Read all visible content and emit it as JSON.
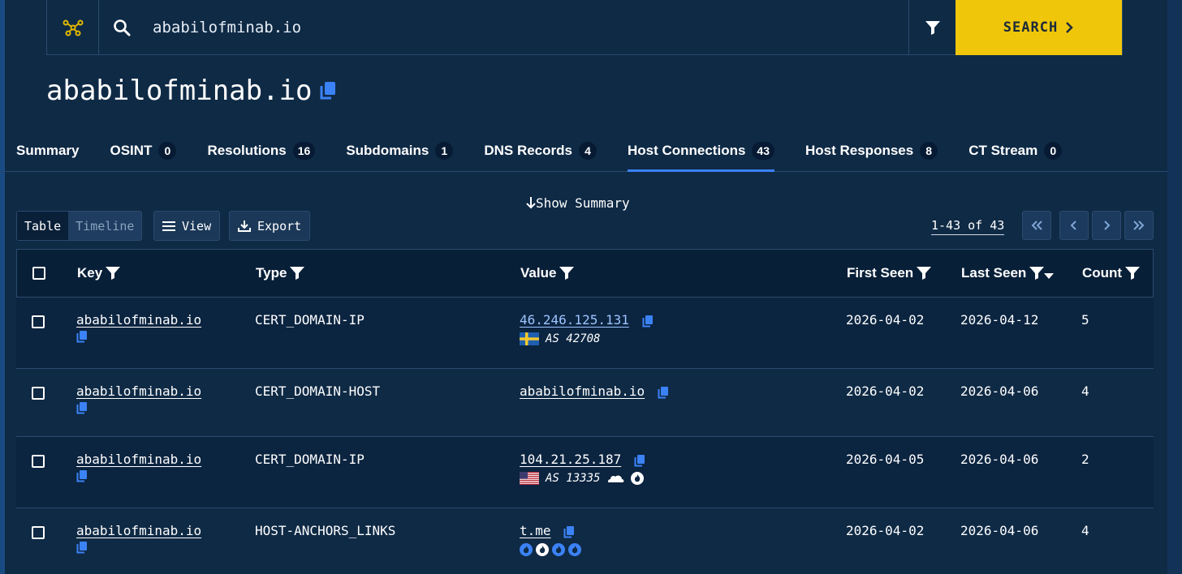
{
  "search": {
    "query": "ababilofminab.io",
    "button_label": "SEARCH"
  },
  "page": {
    "title": "ababilofminab.io"
  },
  "tabs": [
    {
      "label": "Summary",
      "count": ""
    },
    {
      "label": "OSINT",
      "count": "0"
    },
    {
      "label": "Resolutions",
      "count": "16"
    },
    {
      "label": "Subdomains",
      "count": "1"
    },
    {
      "label": "DNS Records",
      "count": "4"
    },
    {
      "label": "Host Connections",
      "count": "43",
      "active": true
    },
    {
      "label": "Host Responses",
      "count": "8"
    },
    {
      "label": "CT Stream",
      "count": "0"
    }
  ],
  "toolbar": {
    "show_summary": "Show Summary",
    "view_table": "Table",
    "view_timeline": "Timeline",
    "view_label": "View",
    "export_label": "Export",
    "pager_text": "1-43 of 43"
  },
  "table": {
    "columns": [
      "Key",
      "Type",
      "Value",
      "First Seen",
      "Last Seen",
      "Count"
    ],
    "rows": [
      {
        "key": "ababilofminab.io",
        "type": "CERT_DOMAIN-IP",
        "value": "46.246.125.131",
        "value_style": "ip",
        "asn": "AS 42708",
        "country": "SE",
        "first_seen": "2026-04-02",
        "last_seen": "2026-04-12",
        "count": "5"
      },
      {
        "key": "ababilofminab.io",
        "type": "CERT_DOMAIN-HOST",
        "value": "ababilofminab.io",
        "value_style": "host",
        "asn": "",
        "first_seen": "2026-04-02",
        "last_seen": "2026-04-06",
        "count": "4"
      },
      {
        "key": "ababilofminab.io",
        "type": "CERT_DOMAIN-IP",
        "value": "104.21.25.187",
        "value_style": "host",
        "asn": "AS 13335",
        "country": "US",
        "first_seen": "2026-04-05",
        "last_seen": "2026-04-06",
        "count": "2"
      },
      {
        "key": "ababilofminab.io",
        "type": "HOST-ANCHORS_LINKS",
        "value": "t.me",
        "value_style": "host",
        "asn": "",
        "first_seen": "2026-04-02",
        "last_seen": "2026-04-06",
        "count": "4"
      }
    ]
  },
  "colors": {
    "background": "#0f2a45",
    "accent_yellow": "#f0c60a",
    "accent_blue": "#3b82f6"
  }
}
